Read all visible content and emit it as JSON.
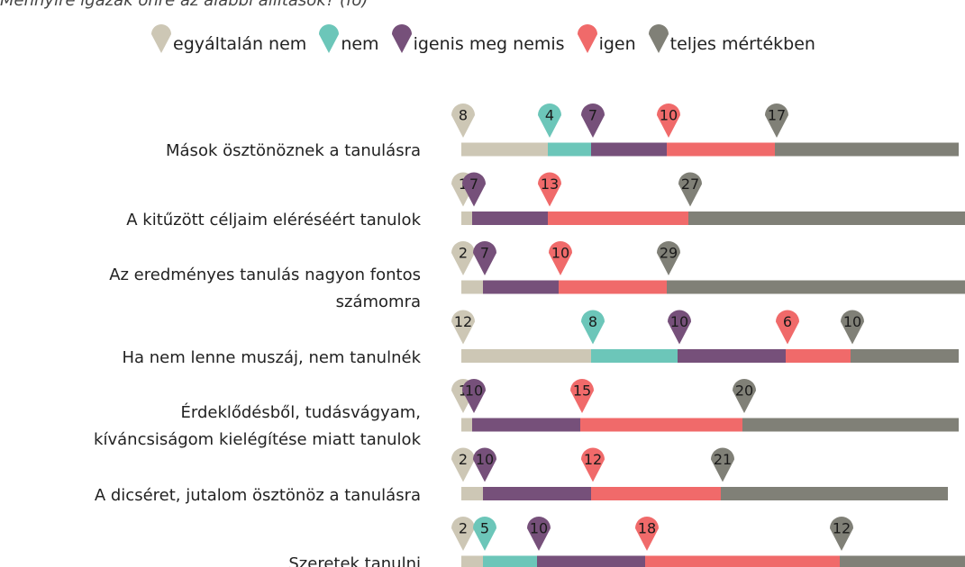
{
  "chart_data": {
    "type": "stacked-bar",
    "title": "Mennyire igazak önre az alábbi állítások? (fő)",
    "categories": [
      "Mások ösztönöznek a tanulásra",
      "A kitűzött céljaim eléréséért tanulok",
      "Az eredményes tanulás nagyon fontos\nszámomra",
      "Ha nem lenne muszáj, nem tanulnék",
      "Érdeklődésből, tudásvágyam,\nkíváncsiságom kielégítése miatt tanulok",
      "A dicséret, jutalom ösztönöz a tanulásra",
      "Szeretek tanulni"
    ],
    "series": [
      {
        "name": "egyáltalán nem",
        "color": "#cdc7b5",
        "values": [
          8,
          1,
          2,
          12,
          1,
          2,
          2
        ]
      },
      {
        "name": "nem",
        "color": "#6cc6b9",
        "values": [
          4,
          null,
          null,
          8,
          null,
          null,
          5
        ]
      },
      {
        "name": "igenis meg nemis",
        "color": "#76507a",
        "values": [
          7,
          7,
          7,
          10,
          10,
          10,
          10
        ]
      },
      {
        "name": "igen",
        "color": "#f06a6a",
        "values": [
          10,
          13,
          10,
          6,
          15,
          12,
          18
        ]
      },
      {
        "name": "teljes mértékben",
        "color": "#808077",
        "values": [
          17,
          27,
          29,
          10,
          20,
          21,
          12
        ]
      }
    ]
  }
}
